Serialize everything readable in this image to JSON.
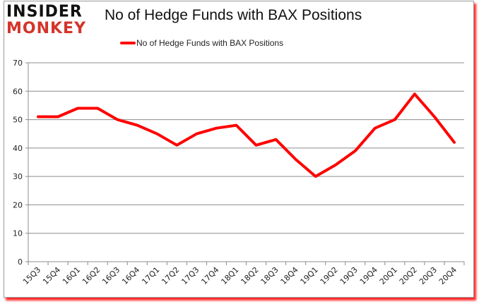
{
  "logo": {
    "line1": "INSIDER",
    "line2": "MONKEY"
  },
  "chart_data": {
    "type": "line",
    "title": "No of Hedge Funds with BAX Positions",
    "xlabel": "",
    "ylabel": "",
    "ylim": [
      0,
      70
    ],
    "yticks": [
      0,
      10,
      20,
      30,
      40,
      50,
      60,
      70
    ],
    "grid": true,
    "legend_position": "top",
    "categories": [
      "15Q3",
      "15Q4",
      "16Q1",
      "16Q2",
      "16Q3",
      "16Q4",
      "17Q1",
      "17Q2",
      "17Q3",
      "17Q4",
      "18Q1",
      "18Q2",
      "18Q3",
      "18Q4",
      "19Q1",
      "19Q2",
      "19Q3",
      "19Q4",
      "20Q1",
      "20Q2",
      "20Q3",
      "20Q4"
    ],
    "series": [
      {
        "name": "No of Hedge Funds with BAX Positions",
        "color": "#ff0000",
        "values": [
          51,
          51,
          54,
          54,
          50,
          48,
          45,
          41,
          45,
          47,
          48,
          41,
          43,
          36,
          30,
          34,
          39,
          47,
          50,
          59,
          51,
          42
        ]
      }
    ]
  }
}
